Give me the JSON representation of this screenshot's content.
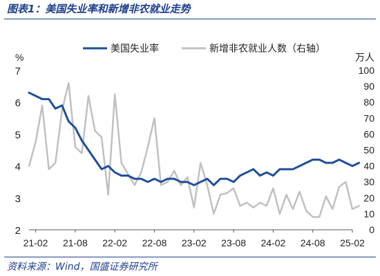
{
  "title": "图表1：美国失业率和新增非农就业走势",
  "source": "资料来源：Wind，国盛证券研究所",
  "colors": {
    "unemployment": "#1f4e9c",
    "payrolls": "#c0c0c0",
    "frame": "#1f3f8c"
  },
  "chart_data": {
    "type": "line",
    "x_ticks": [
      "21-02",
      "21-08",
      "22-02",
      "22-08",
      "23-02",
      "23-08",
      "24-02",
      "24-08",
      "25-02"
    ],
    "x_start": "2021-01",
    "x_end": "2025-02",
    "left_axis": {
      "label": "%",
      "ylim": [
        2,
        7
      ],
      "ticks": [
        2,
        3,
        4,
        5,
        6,
        7
      ]
    },
    "right_axis": {
      "label": "万人",
      "ylim": [
        0,
        100
      ],
      "ticks": [
        0,
        10,
        20,
        30,
        40,
        50,
        60,
        70,
        80,
        90,
        100
      ]
    },
    "legend_position": "top",
    "grid": false,
    "series": [
      {
        "name": "美国失业率",
        "axis": "left",
        "values": [
          6.3,
          6.2,
          6.1,
          6.1,
          5.8,
          5.9,
          5.4,
          5.2,
          4.8,
          4.5,
          4.2,
          3.9,
          4.0,
          3.8,
          3.7,
          3.7,
          3.6,
          3.6,
          3.5,
          3.6,
          3.5,
          3.6,
          3.6,
          3.5,
          3.5,
          3.4,
          3.5,
          3.6,
          3.4,
          3.6,
          3.6,
          3.5,
          3.7,
          3.8,
          3.9,
          3.7,
          3.8,
          3.7,
          3.9,
          3.9,
          3.9,
          4.0,
          4.1,
          4.2,
          4.2,
          4.1,
          4.1,
          4.2,
          4.1,
          4.0,
          4.1
        ]
      },
      {
        "name": "新增非农就业人数（右轴）",
        "axis": "right",
        "values": [
          40,
          55,
          78,
          38,
          42,
          75,
          92,
          52,
          48,
          84,
          62,
          58,
          22,
          85,
          42,
          35,
          28,
          36,
          52,
          70,
          28,
          30,
          37,
          28,
          33,
          14,
          42,
          28,
          10,
          22,
          23,
          26,
          15,
          17,
          14,
          17,
          15,
          26,
          10,
          22,
          13,
          24,
          12,
          8,
          8,
          21,
          13,
          27,
          30,
          13,
          15
        ]
      }
    ]
  }
}
